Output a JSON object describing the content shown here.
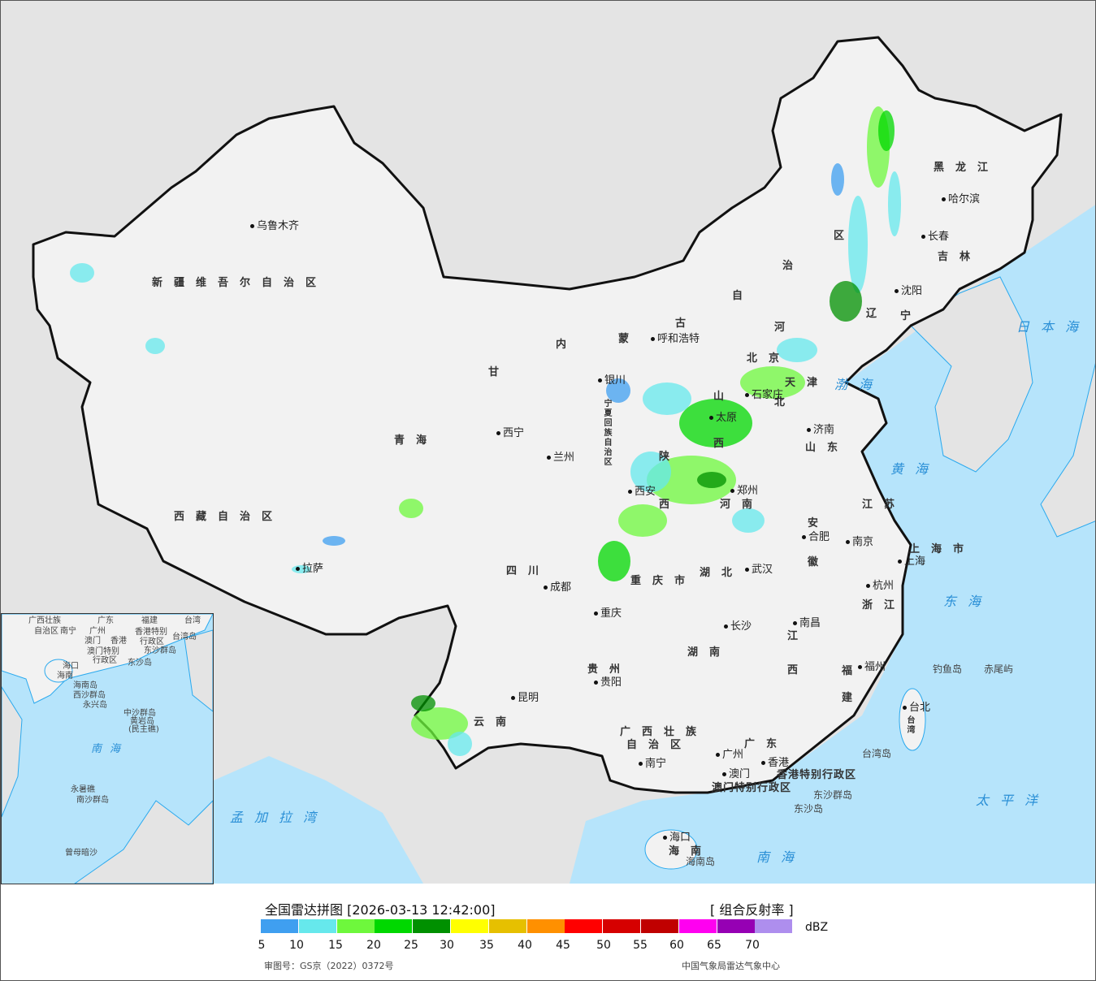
{
  "legend": {
    "title": "全国雷达拼图 [2026-03-13 12:42:00]",
    "product": "[ 组合反射率 ]",
    "unit": "dBZ",
    "colors": [
      "#3f9ff0",
      "#66e8ec",
      "#6ef83c",
      "#00d800",
      "#009000",
      "#ffff00",
      "#e6c000",
      "#ff9000",
      "#ff0000",
      "#d60000",
      "#c00000",
      "#ff00f0",
      "#9600b4",
      "#ae8eee"
    ],
    "ticks": [
      "5",
      "10",
      "15",
      "20",
      "25",
      "30",
      "35",
      "40",
      "45",
      "50",
      "55",
      "60",
      "65",
      "70"
    ],
    "approval": "审图号：GS京（2022）0372号",
    "source": "中国气象局雷达气象中心"
  },
  "colors": {
    "land": "#f2f2f2",
    "foreign_land": "#e4e4e4",
    "sea": "#b6e4fb",
    "border": "#111111",
    "sea_label": "#2a8fd6"
  },
  "provinces": [
    "新疆维吾尔自治区",
    "西藏自治区",
    "青海",
    "甘",
    "内",
    "蒙",
    "古",
    "自",
    "治",
    "区",
    "黑龙江",
    "吉林",
    "辽",
    "宁",
    "河",
    "北",
    "山",
    "西",
    "山东",
    "陕",
    "西",
    "河南",
    "宁夏回族自治区",
    "四川",
    "重庆市",
    "湖北",
    "安",
    "徽",
    "江苏",
    "上海市",
    "浙江",
    "湖南",
    "江",
    "西",
    "福",
    "建",
    "贵州",
    "云南",
    "广西壮族",
    "自治区",
    "广东",
    "香港特别行政区",
    "澳门特别行政区",
    "台湾",
    "海南",
    "北京",
    "天津"
  ],
  "cities": [
    "乌鲁木齐",
    "拉萨",
    "西宁",
    "兰州",
    "银川",
    "呼和浩特",
    "太原",
    "石家庄",
    "济南",
    "西安",
    "郑州",
    "合肥",
    "南京",
    "上海",
    "武汉",
    "杭州",
    "成都",
    "重庆",
    "长沙",
    "南昌",
    "贵阳",
    "昆明",
    "南宁",
    "广州",
    "澳门",
    "香港",
    "福州",
    "台北",
    "哈尔滨",
    "长春",
    "沈阳",
    "海口"
  ],
  "islands": [
    "钓鱼岛",
    "赤尾屿",
    "台湾岛",
    "东沙群岛",
    "东沙岛",
    "海南岛"
  ],
  "seas": [
    "日本海",
    "渤海",
    "黄海",
    "东海",
    "太平洋",
    "南海",
    "孟加拉湾"
  ],
  "inset_labels": [
    "广西壮族",
    "自治区",
    "南宁",
    "广东",
    "福建",
    "台湾",
    "广州",
    "澳门",
    "香港",
    "香港特别",
    "行政区",
    "台湾岛",
    "澳门特别",
    "行政区",
    "东沙群岛",
    "东沙岛",
    "海口",
    "海南",
    "海南岛",
    "西沙群岛",
    "永兴岛",
    "中沙群岛",
    "黄岩岛",
    "(民主礁)",
    "永暑礁",
    "南沙群岛",
    "曾母暗沙"
  ],
  "inset_seas": [
    "南海"
  ]
}
